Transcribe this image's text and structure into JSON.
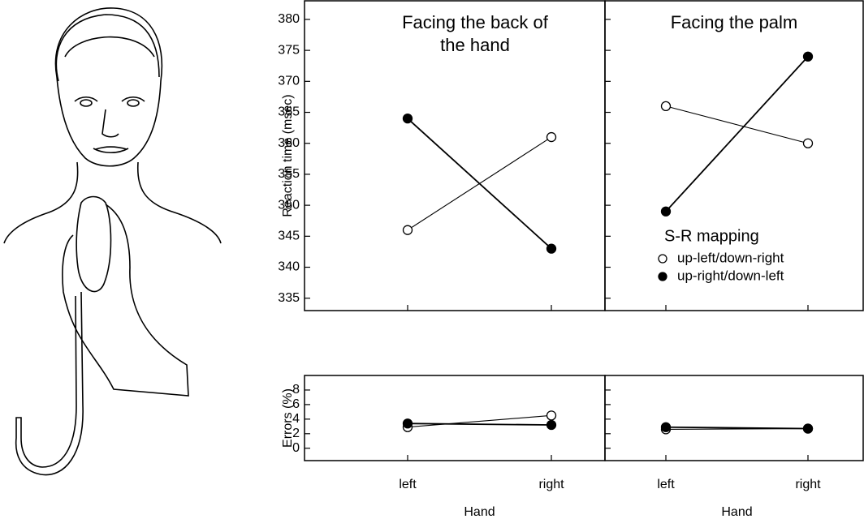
{
  "chart_data": [
    {
      "type": "line",
      "title": "Facing the back of the hand",
      "ylabel": "Reaction time (msec)",
      "ylim": [
        333,
        383
      ],
      "yticks": [
        335,
        340,
        345,
        350,
        355,
        360,
        365,
        370,
        375,
        380
      ],
      "series": [
        {
          "marker": "open",
          "color": "#000000",
          "values": [
            346,
            361
          ]
        },
        {
          "marker": "filled",
          "color": "#000000",
          "values": [
            364,
            343
          ]
        }
      ]
    },
    {
      "type": "line",
      "title": "Facing the palm",
      "legend_title": "S-R mapping",
      "series": [
        {
          "name": "up-left/down-right",
          "marker": "open",
          "color": "#000000",
          "values": [
            366,
            360
          ]
        },
        {
          "name": "up-right/down-left",
          "marker": "filled",
          "color": "#000000",
          "values": [
            349,
            374
          ]
        }
      ]
    },
    {
      "type": "line",
      "ylabel": "Errors (%)",
      "xlabel": "Hand",
      "categories": [
        "left",
        "right"
      ],
      "ylim": [
        -1.7,
        10
      ],
      "yticks": [
        0,
        2,
        4,
        6,
        8
      ],
      "series": [
        {
          "marker": "open",
          "color": "#000000",
          "values": [
            2.9,
            4.5
          ]
        },
        {
          "marker": "filled",
          "color": "#000000",
          "values": [
            3.4,
            3.2
          ]
        }
      ]
    },
    {
      "type": "line",
      "xlabel": "Hand",
      "categories": [
        "left",
        "right"
      ],
      "series": [
        {
          "marker": "open",
          "color": "#000000",
          "values": [
            2.6,
            2.7
          ]
        },
        {
          "marker": "filled",
          "color": "#000000",
          "values": [
            2.9,
            2.7
          ]
        }
      ]
    }
  ]
}
